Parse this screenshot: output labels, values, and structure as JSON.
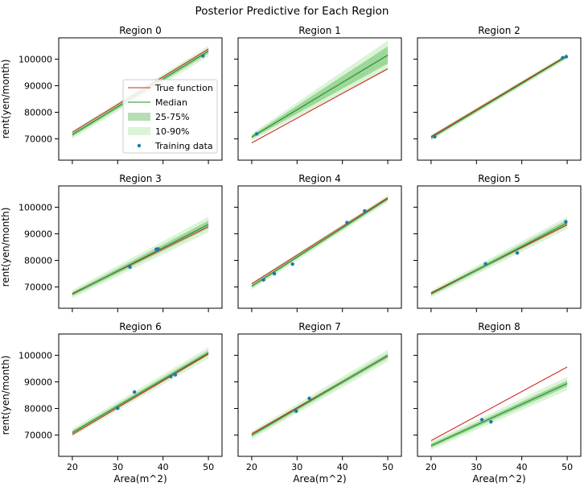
{
  "suptitle": "Posterior Predictive for Each Region",
  "colors": {
    "true_line": "#d62728",
    "median_line": "#2a8a2a",
    "band_25_75": "#2ca02c",
    "band_10_90": "#98df8a",
    "training_points": "#1f77b4"
  },
  "legend": {
    "entries": [
      "True function",
      "Median",
      "25-75%",
      "10-90%",
      "Training data"
    ],
    "placement": "left-center of Region 0"
  },
  "chart_data": {
    "type": "line",
    "xlabel": "Area(m^2)",
    "ylabel": "rent(yen/month)",
    "xlim": [
      17,
      53
    ],
    "ylim": [
      62000,
      108000
    ],
    "x_ticks": [
      20,
      30,
      40,
      50
    ],
    "x_tick_labels": [
      "20",
      "30",
      "40",
      "50"
    ],
    "y_ticks": [
      70000,
      80000,
      90000,
      100000
    ],
    "y_tick_labels": [
      "70000",
      "80000",
      "90000",
      "100000"
    ],
    "panels": [
      {
        "title": "Region 0",
        "true_fn": [
          [
            20,
            72500
          ],
          [
            50,
            103800
          ]
        ],
        "median": [
          [
            20,
            71600
          ],
          [
            50,
            103000
          ]
        ],
        "band_25_75": [
          [
            20,
            70900,
            72300
          ],
          [
            50,
            102100,
            103900
          ]
        ],
        "band_10_90": [
          [
            20,
            70100,
            73100
          ],
          [
            50,
            101000,
            105000
          ]
        ],
        "points": [
          [
            48.8,
            101200
          ]
        ]
      },
      {
        "title": "Region 1",
        "true_fn": [
          [
            20,
            68500
          ],
          [
            50,
            96400
          ]
        ],
        "median": [
          [
            20,
            70700
          ],
          [
            50,
            101500
          ]
        ],
        "band_25_75": [
          [
            20,
            70100,
            71300
          ],
          [
            50,
            98300,
            104800
          ]
        ],
        "band_10_90": [
          [
            20,
            69400,
            72000
          ],
          [
            50,
            95800,
            107000
          ]
        ],
        "points": [
          [
            21.1,
            71900
          ]
        ]
      },
      {
        "title": "Region 2",
        "true_fn": [
          [
            20,
            70900
          ],
          [
            50,
            101400
          ]
        ],
        "median": [
          [
            20,
            70400
          ],
          [
            50,
            101100
          ]
        ],
        "band_25_75": [
          [
            20,
            69900,
            70900
          ],
          [
            50,
            100600,
            101600
          ]
        ],
        "band_10_90": [
          [
            20,
            69300,
            71500
          ],
          [
            50,
            100000,
            102200
          ]
        ],
        "points": [
          [
            20.8,
            70800
          ],
          [
            49,
            100500
          ],
          [
            49.8,
            100900
          ]
        ]
      },
      {
        "title": "Region 3",
        "true_fn": [
          [
            20,
            67500
          ],
          [
            50,
            92700
          ]
        ],
        "median": [
          [
            20,
            67300
          ],
          [
            50,
            93500
          ]
        ],
        "band_25_75": [
          [
            20,
            66600,
            68000
          ],
          [
            50,
            92100,
            94900
          ]
        ],
        "band_10_90": [
          [
            20,
            65800,
            68800
          ],
          [
            50,
            90600,
            96400
          ]
        ],
        "points": [
          [
            32.7,
            77500
          ],
          [
            38.5,
            84200
          ],
          [
            38.9,
            84300
          ]
        ]
      },
      {
        "title": "Region 4",
        "true_fn": [
          [
            20,
            71200
          ],
          [
            50,
            103600
          ]
        ],
        "median": [
          [
            20,
            70300
          ],
          [
            50,
            103200
          ]
        ],
        "band_25_75": [
          [
            20,
            69700,
            70900
          ],
          [
            50,
            102600,
            103800
          ]
        ],
        "band_10_90": [
          [
            20,
            69000,
            71600
          ],
          [
            50,
            101900,
            104500
          ]
        ],
        "points": [
          [
            22.6,
            72700
          ],
          [
            25,
            75000
          ],
          [
            29,
            78600
          ],
          [
            41,
            94200
          ],
          [
            44.9,
            98600
          ]
        ]
      },
      {
        "title": "Region 5",
        "true_fn": [
          [
            20,
            67800
          ],
          [
            50,
            93400
          ]
        ],
        "median": [
          [
            20,
            67400
          ],
          [
            50,
            94100
          ]
        ],
        "band_25_75": [
          [
            20,
            66800,
            68000
          ],
          [
            50,
            93000,
            95200
          ]
        ],
        "band_10_90": [
          [
            20,
            66100,
            68700
          ],
          [
            50,
            91800,
            96400
          ]
        ],
        "points": [
          [
            32,
            78700
          ],
          [
            39,
            82800
          ],
          [
            49.7,
            94500
          ]
        ]
      },
      {
        "title": "Region 6",
        "true_fn": [
          [
            20,
            70200
          ],
          [
            50,
            100500
          ]
        ],
        "median": [
          [
            20,
            70900
          ],
          [
            50,
            100900
          ]
        ],
        "band_25_75": [
          [
            20,
            70200,
            71600
          ],
          [
            50,
            100000,
            101800
          ]
        ],
        "band_10_90": [
          [
            20,
            69400,
            72400
          ],
          [
            50,
            98800,
            103000
          ]
        ],
        "points": [
          [
            30,
            80100
          ],
          [
            33.7,
            86200
          ],
          [
            41.7,
            92000
          ],
          [
            42.7,
            92700
          ]
        ]
      },
      {
        "title": "Region 7",
        "true_fn": [
          [
            20,
            70500
          ],
          [
            50,
            99800
          ]
        ],
        "median": [
          [
            20,
            70000
          ],
          [
            50,
            99900
          ]
        ],
        "band_25_75": [
          [
            20,
            69300,
            70700
          ],
          [
            50,
            99000,
            100800
          ]
        ],
        "band_10_90": [
          [
            20,
            68500,
            71500
          ],
          [
            50,
            97700,
            102100
          ]
        ],
        "points": [
          [
            29.8,
            79000
          ],
          [
            32.7,
            83800
          ]
        ]
      },
      {
        "title": "Region 8",
        "true_fn": [
          [
            20,
            67900
          ],
          [
            50,
            95600
          ]
        ],
        "median": [
          [
            20,
            66000
          ],
          [
            50,
            89400
          ]
        ],
        "band_25_75": [
          [
            20,
            65300,
            66700
          ],
          [
            50,
            88300,
            90500
          ]
        ],
        "band_10_90": [
          [
            20,
            64500,
            67500
          ],
          [
            50,
            86900,
            91900
          ]
        ],
        "points": [
          [
            31.2,
            75800
          ],
          [
            33.2,
            75000
          ]
        ]
      }
    ]
  }
}
